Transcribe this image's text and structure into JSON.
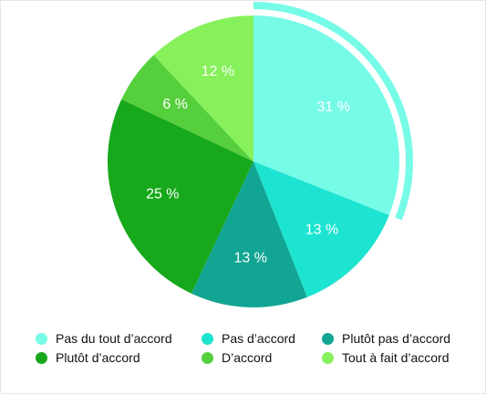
{
  "chart_data": {
    "type": "pie",
    "title": "",
    "categories": [
      "Pas du tout d’accord",
      "Pas d’accord",
      "Plutôt pas d’accord",
      "Plutôt d’accord",
      "D’accord",
      "Tout à fait d’accord"
    ],
    "values": [
      31,
      13,
      13,
      25,
      6,
      12
    ],
    "value_labels": [
      "31 %",
      "13 %",
      "13 %",
      "25 %",
      "6 %",
      "12 %"
    ],
    "colors": [
      "#76fbe7",
      "#1de4d0",
      "#12a593",
      "#17a81b",
      "#56cf3d",
      "#86f15a"
    ],
    "highlight": {
      "category": "Pas du tout d’accord",
      "color": "#76fbe7"
    },
    "start_angle": "12 o'clock",
    "direction": "clockwise",
    "legend_position": "bottom",
    "legend_columns": 3
  }
}
